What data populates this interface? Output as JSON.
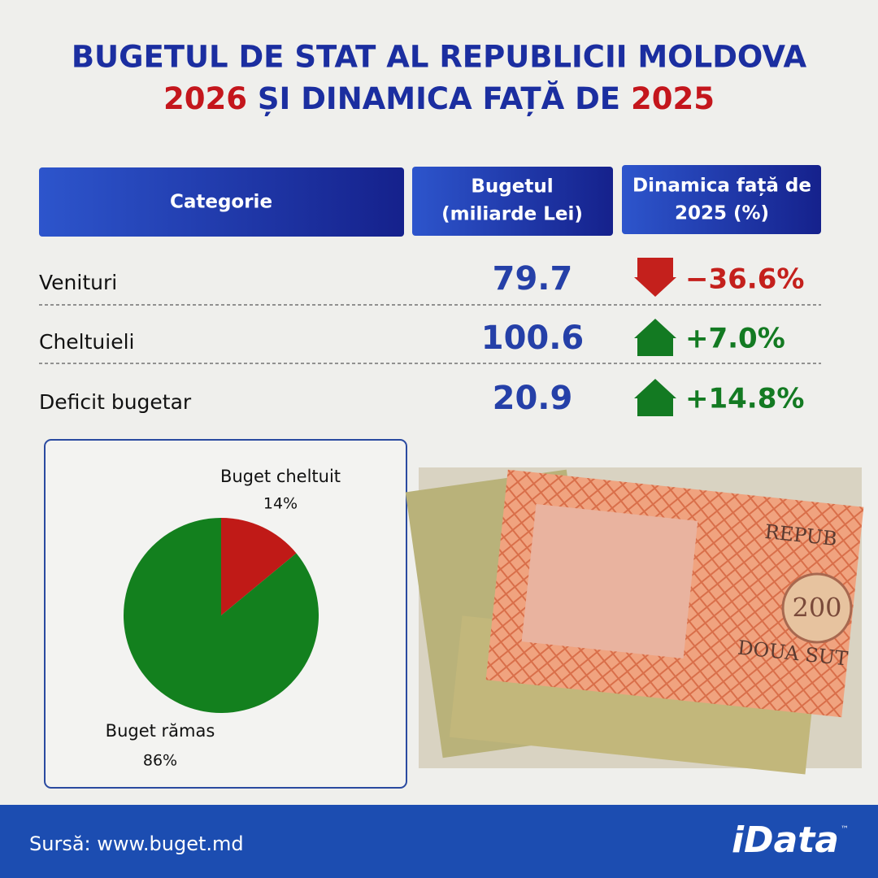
{
  "title": {
    "line1": "BUGETUL DE STAT AL REPUBLICII MOLDOVA",
    "year1": "2026",
    "middle": " ȘI DINAMICA FAȚĂ DE ",
    "year2": "2025"
  },
  "table": {
    "headers": [
      "Categorie",
      "Bugetul",
      "(miliarde Lei)",
      "Dinamica față de",
      "2025 (%)"
    ],
    "rows": [
      {
        "label": "Venituri",
        "value": "79.7",
        "change": "−36.6%",
        "trend": "down"
      },
      {
        "label": "Cheltuieli",
        "value": "100.6",
        "change": "+7.0%",
        "trend": "up"
      },
      {
        "label": "Deficit bugetar",
        "value": "20.9",
        "change": "+14.8%",
        "trend": "up"
      }
    ]
  },
  "chart_data": {
    "type": "pie",
    "categories": [
      "Buget cheltuit",
      "Buget rămas"
    ],
    "values": [
      14,
      86
    ],
    "value_labels": [
      "14%",
      "86%"
    ],
    "colors": [
      "#c01a17",
      "#13801e"
    ]
  },
  "footer": {
    "source": "Sursă: www.buget.md",
    "logo": "iData",
    "tm": "™"
  }
}
